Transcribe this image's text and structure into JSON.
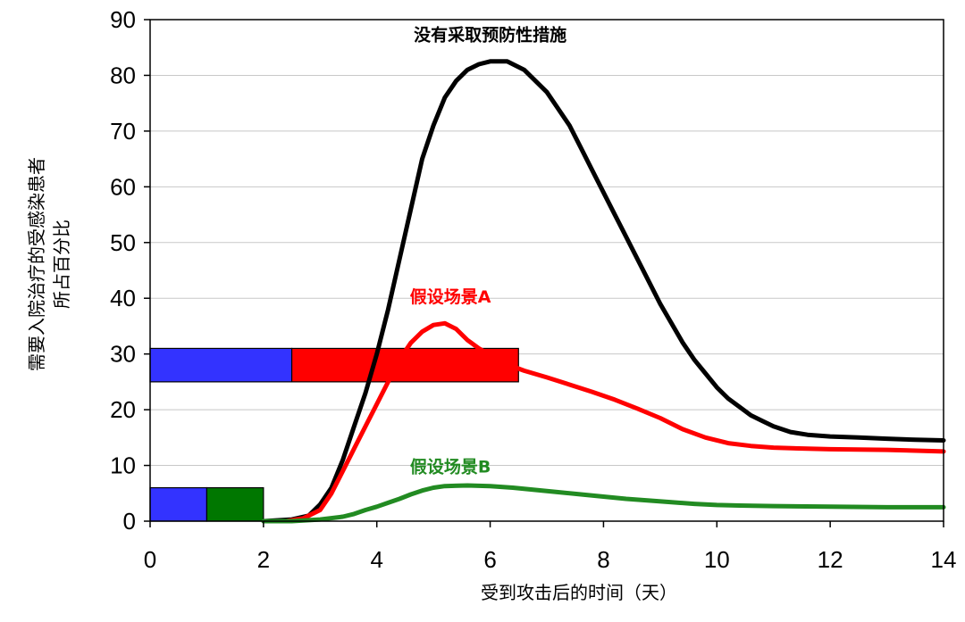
{
  "chart_data": {
    "type": "line",
    "title": "",
    "xlabel": "受到攻击后的时间（天）",
    "ylabel_lines": [
      "需要入院治疗的受感染患者",
      "所占百分比"
    ],
    "xlim": [
      0,
      14
    ],
    "ylim": [
      0,
      90
    ],
    "x_ticks": [
      0,
      2,
      4,
      6,
      8,
      10,
      12,
      14
    ],
    "y_ticks": [
      0,
      10,
      20,
      30,
      40,
      50,
      60,
      70,
      80,
      90
    ],
    "grid": "horizontal",
    "series": [
      {
        "name": "没有采取预防性措施",
        "color": "#000000",
        "points": [
          [
            2.0,
            0
          ],
          [
            2.5,
            0.3
          ],
          [
            2.8,
            1
          ],
          [
            3.0,
            3
          ],
          [
            3.2,
            6
          ],
          [
            3.4,
            11
          ],
          [
            3.6,
            17
          ],
          [
            3.8,
            23
          ],
          [
            4.0,
            30
          ],
          [
            4.2,
            38
          ],
          [
            4.4,
            47
          ],
          [
            4.6,
            56
          ],
          [
            4.8,
            65
          ],
          [
            5.0,
            71
          ],
          [
            5.2,
            76
          ],
          [
            5.4,
            79
          ],
          [
            5.6,
            81
          ],
          [
            5.8,
            82
          ],
          [
            6.0,
            82.5
          ],
          [
            6.3,
            82.5
          ],
          [
            6.6,
            81
          ],
          [
            6.8,
            79
          ],
          [
            7.0,
            77
          ],
          [
            7.2,
            74
          ],
          [
            7.4,
            71
          ],
          [
            7.6,
            67
          ],
          [
            7.8,
            63
          ],
          [
            8.0,
            59
          ],
          [
            8.2,
            55
          ],
          [
            8.4,
            51
          ],
          [
            8.6,
            47
          ],
          [
            8.8,
            43
          ],
          [
            9.0,
            39
          ],
          [
            9.2,
            35.5
          ],
          [
            9.4,
            32
          ],
          [
            9.6,
            29
          ],
          [
            9.8,
            26.5
          ],
          [
            10.0,
            24
          ],
          [
            10.2,
            22
          ],
          [
            10.4,
            20.5
          ],
          [
            10.6,
            19
          ],
          [
            10.8,
            18
          ],
          [
            11.0,
            17
          ],
          [
            11.3,
            16
          ],
          [
            11.6,
            15.5
          ],
          [
            12.0,
            15.2
          ],
          [
            12.5,
            15
          ],
          [
            13.0,
            14.8
          ],
          [
            13.5,
            14.6
          ],
          [
            14.0,
            14.5
          ]
        ]
      },
      {
        "name": "假设场景A",
        "color": "#ff0000",
        "points": [
          [
            2.4,
            0
          ],
          [
            2.7,
            0.5
          ],
          [
            3.0,
            2
          ],
          [
            3.2,
            5
          ],
          [
            3.4,
            9
          ],
          [
            3.6,
            13
          ],
          [
            3.8,
            17
          ],
          [
            4.0,
            21
          ],
          [
            4.2,
            25
          ],
          [
            4.4,
            29
          ],
          [
            4.6,
            32
          ],
          [
            4.8,
            34
          ],
          [
            5.0,
            35.2
          ],
          [
            5.2,
            35.5
          ],
          [
            5.4,
            34.5
          ],
          [
            5.6,
            32.5
          ],
          [
            5.8,
            31
          ],
          [
            6.0,
            29.8
          ],
          [
            6.2,
            28.5
          ],
          [
            6.6,
            27
          ],
          [
            7.0,
            25.8
          ],
          [
            7.4,
            24.5
          ],
          [
            7.8,
            23.2
          ],
          [
            8.2,
            21.8
          ],
          [
            8.6,
            20.2
          ],
          [
            9.0,
            18.5
          ],
          [
            9.4,
            16.5
          ],
          [
            9.8,
            15
          ],
          [
            10.2,
            14
          ],
          [
            10.6,
            13.5
          ],
          [
            11.0,
            13.2
          ],
          [
            11.6,
            13
          ],
          [
            12.0,
            12.9
          ],
          [
            13.0,
            12.8
          ],
          [
            14.0,
            12.5
          ]
        ]
      },
      {
        "name": "假设场景B",
        "color": "#228b22",
        "points": [
          [
            2.0,
            0
          ],
          [
            2.5,
            0
          ],
          [
            3.0,
            0.3
          ],
          [
            3.4,
            0.8
          ],
          [
            3.6,
            1.3
          ],
          [
            3.8,
            2
          ],
          [
            4.0,
            2.6
          ],
          [
            4.2,
            3.3
          ],
          [
            4.4,
            4
          ],
          [
            4.6,
            4.8
          ],
          [
            4.8,
            5.5
          ],
          [
            5.0,
            6
          ],
          [
            5.2,
            6.3
          ],
          [
            5.6,
            6.4
          ],
          [
            6.0,
            6.3
          ],
          [
            6.4,
            6
          ],
          [
            6.8,
            5.6
          ],
          [
            7.2,
            5.2
          ],
          [
            7.6,
            4.8
          ],
          [
            8.0,
            4.4
          ],
          [
            8.4,
            4
          ],
          [
            8.8,
            3.7
          ],
          [
            9.2,
            3.4
          ],
          [
            9.6,
            3.1
          ],
          [
            10.0,
            2.9
          ],
          [
            10.4,
            2.8
          ],
          [
            11.0,
            2.7
          ],
          [
            12.0,
            2.6
          ],
          [
            13.0,
            2.5
          ],
          [
            14.0,
            2.5
          ]
        ]
      }
    ],
    "annotations": [
      {
        "text": "没有采取预防性措施",
        "color": "#000000",
        "x": 6.0,
        "y": 86.2
      },
      {
        "text": "假设场景A",
        "color": "#ff0000",
        "x": 5.3,
        "y": 39.2
      },
      {
        "text": "假设场景B",
        "color": "#228b22",
        "x": 5.3,
        "y": 8.7
      }
    ],
    "bars": [
      {
        "segments": [
          {
            "x0": 0,
            "x1": 2.5,
            "color": "#3333ff"
          },
          {
            "x0": 2.5,
            "x1": 6.5,
            "color": "#ff0000"
          }
        ],
        "y0": 25,
        "y1": 31
      },
      {
        "segments": [
          {
            "x0": 0,
            "x1": 1,
            "color": "#3333ff"
          },
          {
            "x0": 1,
            "x1": 2,
            "color": "#007700"
          }
        ],
        "y0": 0,
        "y1": 6
      }
    ]
  }
}
